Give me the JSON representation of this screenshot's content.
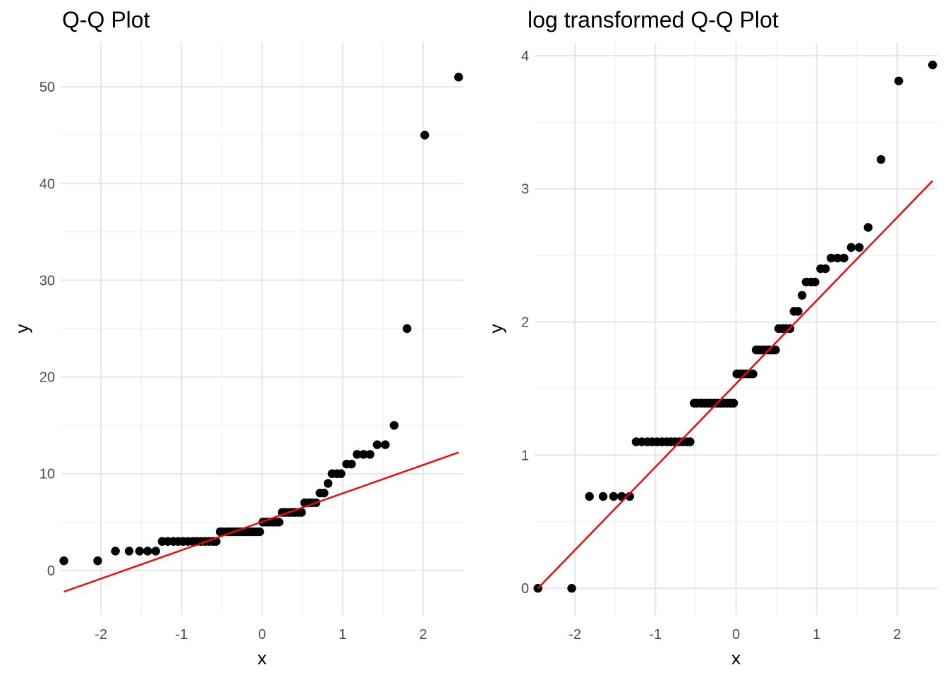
{
  "chart_data": [
    {
      "type": "scatter",
      "title": "Q-Q Plot",
      "xlabel": "x",
      "ylabel": "y",
      "xlim": [
        -2.5,
        2.5
      ],
      "ylim": [
        -4.6,
        54.6
      ],
      "xticks": [
        -2,
        -1,
        0,
        1,
        2
      ],
      "xtick_labels": [
        "-2",
        "-1",
        "0",
        "1",
        "2"
      ],
      "yticks": [
        0,
        10,
        20,
        30,
        40,
        50
      ],
      "ytick_labels": [
        "0",
        "10",
        "20",
        "30",
        "40",
        "50"
      ],
      "grid": true,
      "point_color": "#000000",
      "line_color": "#ff0000",
      "x": [
        -2.46,
        -2.04,
        -1.82,
        -1.65,
        -1.52,
        -1.42,
        -1.32,
        -1.24,
        -1.17,
        -1.1,
        -1.04,
        -0.98,
        -0.92,
        -0.86,
        -0.81,
        -0.76,
        -0.71,
        -0.66,
        -0.61,
        -0.57,
        -0.52,
        -0.48,
        -0.43,
        -0.39,
        -0.35,
        -0.31,
        -0.27,
        -0.23,
        -0.19,
        -0.15,
        -0.11,
        -0.07,
        -0.03,
        0.01,
        0.05,
        0.09,
        0.13,
        0.17,
        0.21,
        0.25,
        0.29,
        0.33,
        0.37,
        0.41,
        0.45,
        0.49,
        0.53,
        0.58,
        0.62,
        0.67,
        0.72,
        0.77,
        0.82,
        0.87,
        0.93,
        0.98,
        1.05,
        1.11,
        1.18,
        1.26,
        1.34,
        1.43,
        1.53,
        1.64,
        1.8,
        2.02,
        2.44
      ],
      "y": [
        1,
        1,
        2,
        2,
        2,
        2,
        2,
        3,
        3,
        3,
        3,
        3,
        3,
        3,
        3,
        3,
        3,
        3,
        3,
        3,
        4,
        4,
        4,
        4,
        4,
        4,
        4,
        4,
        4,
        4,
        4,
        4,
        4,
        5,
        5,
        5,
        5,
        5,
        5,
        6,
        6,
        6,
        6,
        6,
        6,
        6,
        7,
        7,
        7,
        7,
        8,
        8,
        9,
        10,
        10,
        10,
        11,
        11,
        12,
        12,
        12,
        13,
        13,
        15,
        25,
        45,
        51
      ],
      "reference_line": {
        "x": [
          -2.46,
          2.44
        ],
        "y": [
          -2.2,
          12.2
        ]
      }
    },
    {
      "type": "scatter",
      "title": "log transformed Q-Q Plot",
      "xlabel": "x",
      "ylabel": "y",
      "xlim": [
        -2.5,
        2.5
      ],
      "ylim": [
        -0.2,
        4.1
      ],
      "xticks": [
        -2,
        -1,
        0,
        1,
        2
      ],
      "xtick_labels": [
        "-2",
        "-1",
        "0",
        "1",
        "2"
      ],
      "yticks": [
        0,
        1,
        2,
        3,
        4
      ],
      "ytick_labels": [
        "0",
        "1",
        "2",
        "3",
        "4"
      ],
      "grid": true,
      "point_color": "#000000",
      "line_color": "#ff0000",
      "x": [
        -2.46,
        -2.04,
        -1.82,
        -1.65,
        -1.52,
        -1.42,
        -1.32,
        -1.24,
        -1.17,
        -1.1,
        -1.04,
        -0.98,
        -0.92,
        -0.86,
        -0.81,
        -0.76,
        -0.71,
        -0.66,
        -0.61,
        -0.57,
        -0.52,
        -0.48,
        -0.43,
        -0.39,
        -0.35,
        -0.31,
        -0.27,
        -0.23,
        -0.19,
        -0.15,
        -0.11,
        -0.07,
        -0.03,
        0.01,
        0.05,
        0.09,
        0.13,
        0.17,
        0.21,
        0.25,
        0.29,
        0.33,
        0.37,
        0.41,
        0.45,
        0.49,
        0.53,
        0.58,
        0.62,
        0.67,
        0.72,
        0.77,
        0.82,
        0.87,
        0.93,
        0.98,
        1.05,
        1.11,
        1.18,
        1.26,
        1.34,
        1.43,
        1.53,
        1.64,
        1.8,
        2.02,
        2.44
      ],
      "y": [
        0.0,
        0.0,
        0.69,
        0.69,
        0.69,
        0.69,
        0.69,
        1.1,
        1.1,
        1.1,
        1.1,
        1.1,
        1.1,
        1.1,
        1.1,
        1.1,
        1.1,
        1.1,
        1.1,
        1.1,
        1.39,
        1.39,
        1.39,
        1.39,
        1.39,
        1.39,
        1.39,
        1.39,
        1.39,
        1.39,
        1.39,
        1.39,
        1.39,
        1.61,
        1.61,
        1.61,
        1.61,
        1.61,
        1.61,
        1.79,
        1.79,
        1.79,
        1.79,
        1.79,
        1.79,
        1.79,
        1.95,
        1.95,
        1.95,
        1.95,
        2.08,
        2.08,
        2.2,
        2.3,
        2.3,
        2.3,
        2.4,
        2.4,
        2.48,
        2.48,
        2.48,
        2.56,
        2.56,
        2.71,
        3.22,
        3.81,
        3.93
      ],
      "reference_line": {
        "x": [
          -2.46,
          2.44
        ],
        "y": [
          0.0,
          3.06
        ]
      }
    }
  ]
}
